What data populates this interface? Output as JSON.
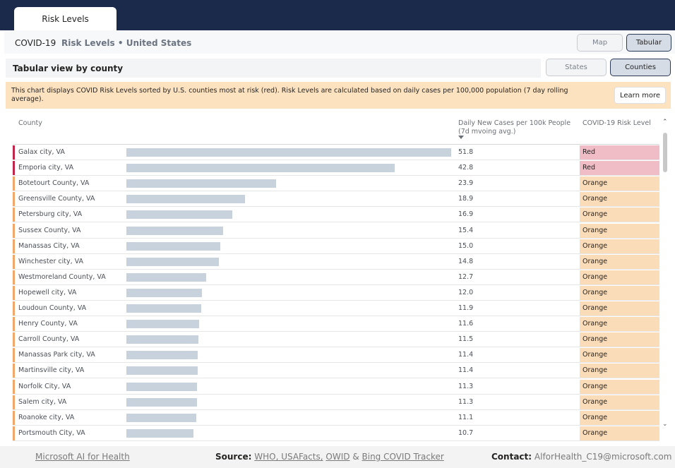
{
  "tab": {
    "label": "Risk Levels"
  },
  "header": {
    "covid": "COVID-19",
    "subtitle": "Risk Levels • United States"
  },
  "view_buttons": {
    "map": "Map",
    "tabular": "Tabular"
  },
  "subheader": {
    "title": "Tabular view by county"
  },
  "level_buttons": {
    "states": "States",
    "counties": "Counties"
  },
  "banner": {
    "text": "This chart displays COVID Risk Levels sorted by U.S. counties most at risk (red). Risk Levels are calculated based on daily cases per 100,000 population (7 day rolling average).",
    "button": "Learn more"
  },
  "table": {
    "col_county": "County",
    "col_cases": "Daily New Cases per 100k People (7d mvoing avg.)",
    "col_risk": "COVID-19 Risk Level",
    "max_value": 51.8,
    "rows": [
      {
        "county": "Galax city, VA",
        "value": 51.8,
        "value_text": "51.8",
        "risk": "Red"
      },
      {
        "county": "Emporia city, VA",
        "value": 42.8,
        "value_text": "42.8",
        "risk": "Red"
      },
      {
        "county": "Botetourt County, VA",
        "value": 23.9,
        "value_text": "23.9",
        "risk": "Orange"
      },
      {
        "county": "Greensville County, VA",
        "value": 18.9,
        "value_text": "18.9",
        "risk": "Orange"
      },
      {
        "county": "Petersburg city, VA",
        "value": 16.9,
        "value_text": "16.9",
        "risk": "Orange"
      },
      {
        "county": "Sussex County, VA",
        "value": 15.4,
        "value_text": "15.4",
        "risk": "Orange"
      },
      {
        "county": "Manassas City, VA",
        "value": 15.0,
        "value_text": "15.0",
        "risk": "Orange"
      },
      {
        "county": "Winchester city, VA",
        "value": 14.8,
        "value_text": "14.8",
        "risk": "Orange"
      },
      {
        "county": "Westmoreland County, VA",
        "value": 12.7,
        "value_text": "12.7",
        "risk": "Orange"
      },
      {
        "county": "Hopewell city, VA",
        "value": 12.0,
        "value_text": "12.0",
        "risk": "Orange"
      },
      {
        "county": "Loudoun County, VA",
        "value": 11.9,
        "value_text": "11.9",
        "risk": "Orange"
      },
      {
        "county": "Henry County, VA",
        "value": 11.6,
        "value_text": "11.6",
        "risk": "Orange"
      },
      {
        "county": "Carroll County, VA",
        "value": 11.5,
        "value_text": "11.5",
        "risk": "Orange"
      },
      {
        "county": "Manassas Park city, VA",
        "value": 11.4,
        "value_text": "11.4",
        "risk": "Orange"
      },
      {
        "county": "Martinsville city, VA",
        "value": 11.4,
        "value_text": "11.4",
        "risk": "Orange"
      },
      {
        "county": "Norfolk City, VA",
        "value": 11.3,
        "value_text": "11.3",
        "risk": "Orange"
      },
      {
        "county": "Salem city, VA",
        "value": 11.3,
        "value_text": "11.3",
        "risk": "Orange"
      },
      {
        "county": "Roanoke city, VA",
        "value": 11.1,
        "value_text": "11.1",
        "risk": "Orange"
      },
      {
        "county": "Portsmouth City, VA",
        "value": 10.7,
        "value_text": "10.7",
        "risk": "Orange"
      }
    ]
  },
  "risk_colors": {
    "Red": {
      "accent": "#c0264a",
      "fill": "#f0bcc6"
    },
    "Orange": {
      "accent": "#f2a76a",
      "fill": "#fbdcb8"
    }
  },
  "bar_color": "#c8d2dc",
  "footer": {
    "left": "Microsoft AI for Health",
    "source_label": "Source:",
    "source_who_usafacts": "WHO, USAFacts,",
    "source_owid": "OWID",
    "source_amp": "&",
    "source_bing": "Bing COVID Tracker",
    "contact_label": "Contact:",
    "contact_email": "AlforHealth_C19@microsoft.com"
  }
}
